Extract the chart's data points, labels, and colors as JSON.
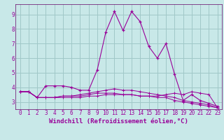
{
  "background_color": "#c8e8e8",
  "grid_color": "#a0c8c8",
  "line_color": "#990099",
  "spine_color": "#660066",
  "xlim": [
    -0.5,
    23.5
  ],
  "ylim": [
    2.5,
    9.7
  ],
  "xticks": [
    0,
    1,
    2,
    3,
    4,
    5,
    6,
    7,
    8,
    9,
    10,
    11,
    12,
    13,
    14,
    15,
    16,
    17,
    18,
    19,
    20,
    21,
    22,
    23
  ],
  "yticks": [
    3,
    4,
    5,
    6,
    7,
    8,
    9
  ],
  "xlabel": "Windchill (Refroidissement éolien,°C)",
  "series1_x": [
    0,
    1,
    2,
    3,
    4,
    5,
    6,
    7,
    8,
    9,
    10,
    11,
    12,
    13,
    14,
    15,
    16,
    17,
    18,
    19,
    20,
    21,
    22,
    23
  ],
  "series1_y": [
    3.7,
    3.7,
    3.3,
    4.1,
    4.1,
    4.1,
    4.0,
    3.8,
    3.8,
    5.2,
    7.8,
    9.2,
    7.9,
    9.2,
    8.5,
    6.8,
    6.0,
    7.0,
    4.9,
    3.1,
    3.5,
    3.1,
    2.9,
    2.7
  ],
  "series2_x": [
    0,
    1,
    2,
    3,
    4,
    5,
    6,
    7,
    8,
    9,
    10,
    11,
    12,
    13,
    14,
    15,
    16,
    17,
    18,
    19,
    20,
    21,
    22,
    23
  ],
  "series2_y": [
    3.7,
    3.7,
    3.3,
    3.3,
    3.3,
    3.3,
    3.3,
    3.3,
    3.4,
    3.4,
    3.5,
    3.5,
    3.5,
    3.5,
    3.4,
    3.4,
    3.3,
    3.3,
    3.1,
    3.0,
    2.9,
    2.8,
    2.7,
    2.6
  ],
  "series3_x": [
    0,
    1,
    2,
    3,
    4,
    5,
    6,
    7,
    8,
    9,
    10,
    11,
    12,
    13,
    14,
    15,
    16,
    17,
    18,
    19,
    20,
    21,
    22,
    23
  ],
  "series3_y": [
    3.7,
    3.7,
    3.3,
    3.3,
    3.3,
    3.4,
    3.4,
    3.4,
    3.5,
    3.6,
    3.6,
    3.6,
    3.5,
    3.5,
    3.4,
    3.4,
    3.4,
    3.5,
    3.6,
    3.5,
    3.7,
    3.6,
    3.5,
    2.6
  ],
  "series4_x": [
    0,
    1,
    2,
    3,
    4,
    5,
    6,
    7,
    8,
    9,
    10,
    11,
    12,
    13,
    14,
    15,
    16,
    17,
    18,
    19,
    20,
    21,
    22,
    23
  ],
  "series4_y": [
    3.7,
    3.7,
    3.3,
    3.3,
    3.3,
    3.4,
    3.4,
    3.5,
    3.6,
    3.7,
    3.8,
    3.9,
    3.8,
    3.8,
    3.7,
    3.6,
    3.5,
    3.4,
    3.3,
    3.1,
    3.0,
    2.9,
    2.8,
    2.6
  ]
}
